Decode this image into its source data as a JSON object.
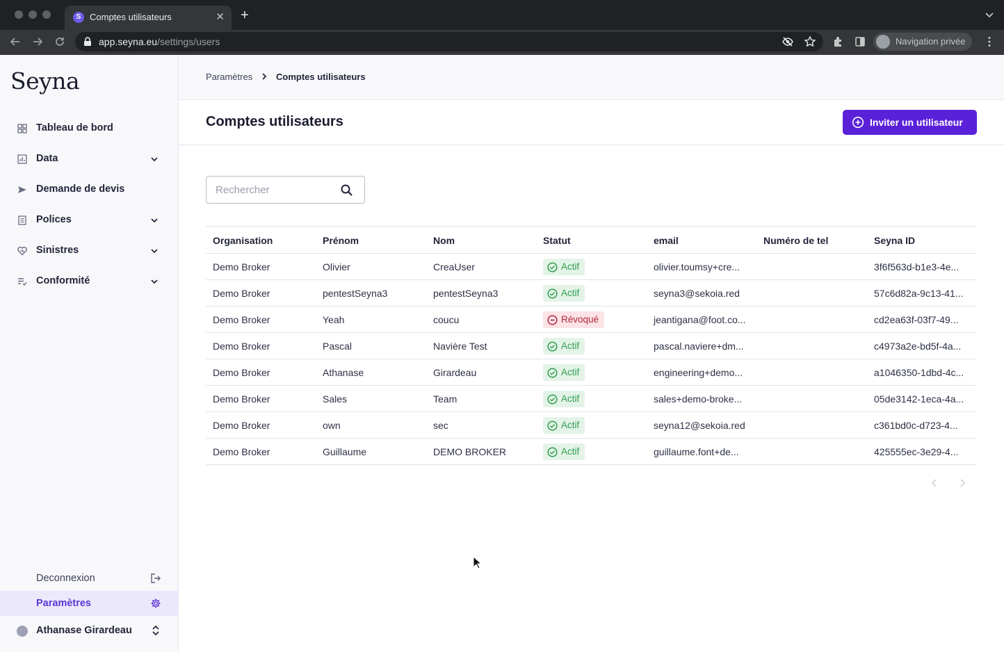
{
  "browser": {
    "tab_title": "Comptes utilisateurs",
    "tab_favicon_letter": "S",
    "url_host": "app.seyna.eu",
    "url_path": "/settings/users",
    "profile_label": "Navigation privée"
  },
  "sidebar": {
    "logo": "Seyna",
    "items": [
      {
        "label": "Tableau de bord",
        "icon": "dashboard-icon",
        "expandable": false
      },
      {
        "label": "Data",
        "icon": "chart-icon",
        "expandable": true
      },
      {
        "label": "Demande de devis",
        "icon": "send-icon",
        "expandable": false
      },
      {
        "label": "Polices",
        "icon": "document-icon",
        "expandable": true
      },
      {
        "label": "Sinistres",
        "icon": "heart-icon",
        "expandable": true
      },
      {
        "label": "Conformité",
        "icon": "checklist-icon",
        "expandable": true
      }
    ],
    "logout_label": "Deconnexion",
    "settings_label": "Paramètres",
    "user_name": "Athanase Girardeau"
  },
  "breadcrumb": {
    "parent": "Paramètres",
    "current": "Comptes utilisateurs"
  },
  "page": {
    "title": "Comptes utilisateurs",
    "invite_label": "Inviter un utilisateur"
  },
  "search": {
    "placeholder": "Rechercher",
    "value": ""
  },
  "table": {
    "columns": [
      "Organisation",
      "Prénom",
      "Nom",
      "Statut",
      "email",
      "Numéro de tel",
      "Seyna ID"
    ],
    "rows": [
      {
        "org": "Demo Broker",
        "first": "Olivier",
        "last": "CreaUser",
        "status": "Actif",
        "email": "olivier.toumsy+cre...",
        "phone": "",
        "id": "3f6f563d-b1e3-4e..."
      },
      {
        "org": "Demo Broker",
        "first": "pentestSeyna3",
        "last": "pentestSeyna3",
        "status": "Actif",
        "email": "seyna3@sekoia.red",
        "phone": "",
        "id": "57c6d82a-9c13-41..."
      },
      {
        "org": "Demo Broker",
        "first": "Yeah",
        "last": "coucu",
        "status": "Révoqué",
        "email": "jeantigana@foot.co...",
        "phone": "",
        "id": "cd2ea63f-03f7-49..."
      },
      {
        "org": "Demo Broker",
        "first": "Pascal",
        "last": "Navière Test",
        "status": "Actif",
        "email": "pascal.naviere+dm...",
        "phone": "",
        "id": "c4973a2e-bd5f-4a..."
      },
      {
        "org": "Demo Broker",
        "first": "Athanase",
        "last": "Girardeau",
        "status": "Actif",
        "email": "engineering+demo...",
        "phone": "",
        "id": "a1046350-1dbd-4c..."
      },
      {
        "org": "Demo Broker",
        "first": "Sales",
        "last": "Team",
        "status": "Actif",
        "email": "sales+demo-broke...",
        "phone": "",
        "id": "05de3142-1eca-4a..."
      },
      {
        "org": "Demo Broker",
        "first": "own",
        "last": "sec",
        "status": "Actif",
        "email": "seyna12@sekoia.red",
        "phone": "",
        "id": "c361bd0c-d723-4..."
      },
      {
        "org": "Demo Broker",
        "first": "Guillaume",
        "last": "DEMO BROKER",
        "status": "Actif",
        "email": "guillaume.font+de...",
        "phone": "",
        "id": "425555ec-3e29-4..."
      }
    ]
  },
  "colors": {
    "accent": "#5b21d9",
    "active_status": "#2f9e50",
    "revoked_status": "#b2263b"
  }
}
